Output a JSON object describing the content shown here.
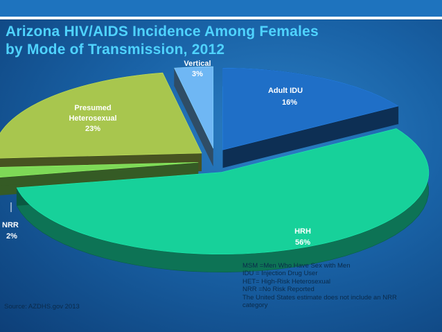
{
  "slide": {
    "title_line1": "Arizona HIV/AIDS Incidence Among Females",
    "title_line2": "by Mode of Transmission, 2012",
    "source": "Source: AZDHS.gov 2013",
    "legend": [
      "MSM =Men Who Have Sex with Men",
      "IDU = Injection Drug User",
      "HET= High-Risk Heterosexual",
      "NRR =No Risk Reported",
      "The United States estimate does not include an NRR",
      "category"
    ],
    "colors": {
      "background": "#1962a6",
      "header_bar": "#1e73be",
      "title": "#4fd3ff",
      "label_light": "#ffffff",
      "label_dark": "#0a2a4a"
    }
  },
  "chart_data": {
    "type": "pie",
    "style": "3d-exploded",
    "title": "Arizona HIV/AIDS Incidence Among Females by Mode of Transmission, 2012",
    "slices": [
      {
        "name": "Adult IDU",
        "value": 16,
        "label_value": "16%",
        "color": "#1f6fc7"
      },
      {
        "name": "HRH",
        "value": 56,
        "label_value": "56%",
        "color": "#17d19a"
      },
      {
        "name": "NRR",
        "value": 2,
        "label_value": "2%",
        "color": "#7ed957"
      },
      {
        "name": "Presumed Heterosexual",
        "value": 23,
        "label_value": "23%",
        "color": "#a8c64e"
      },
      {
        "name": "Vertical",
        "value": 3,
        "label_value": "3%",
        "color": "#6fb7f4"
      }
    ]
  }
}
